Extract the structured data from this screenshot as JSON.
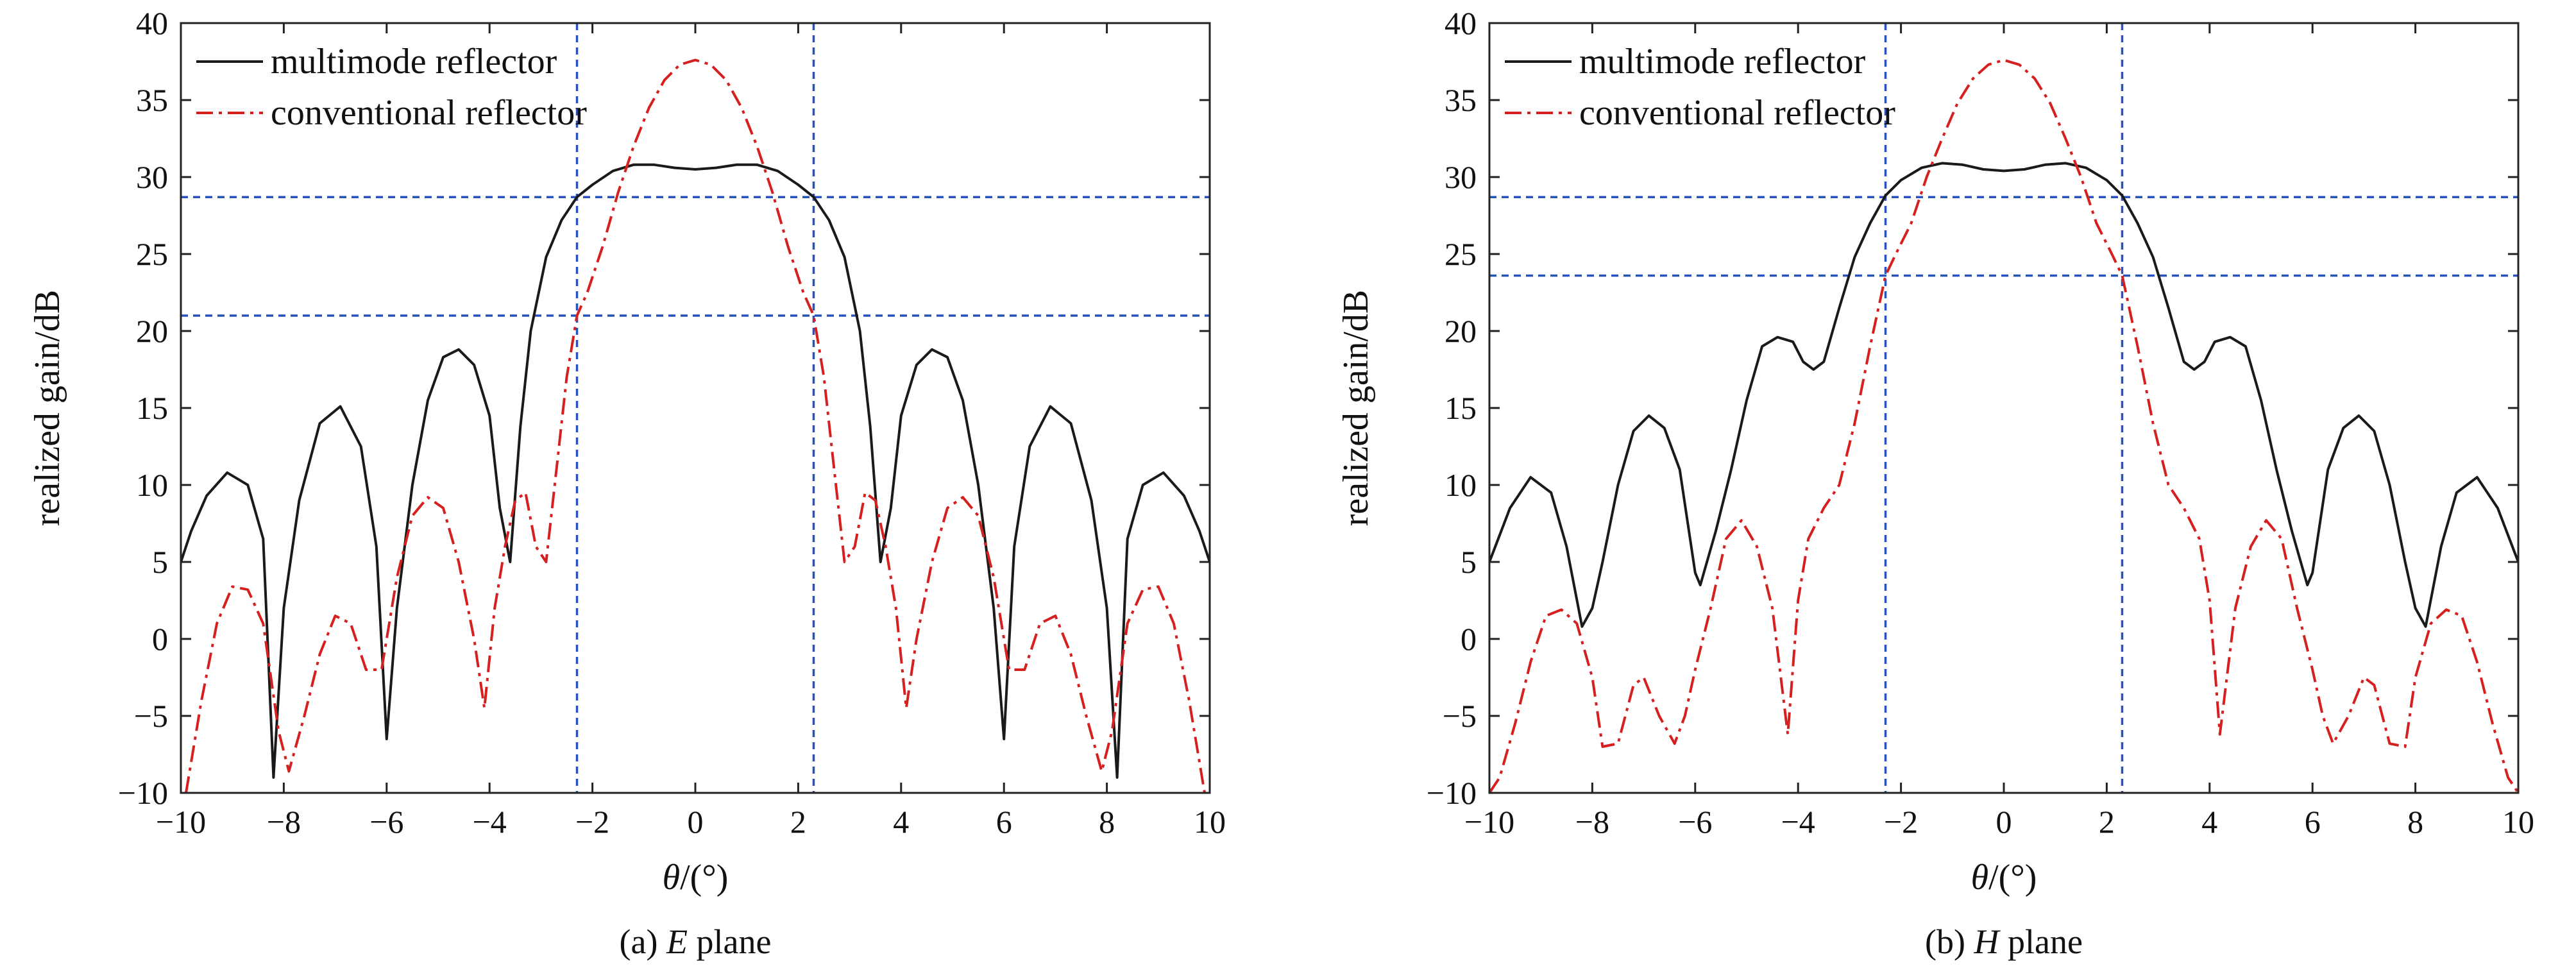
{
  "chart_data": [
    {
      "type": "line",
      "caption_prefix": "(a) ",
      "caption_italic": "E",
      "caption_suffix": " plane",
      "xlabel_italic": "θ",
      "xlabel_rest": "/(°)",
      "ylabel": "realized gain/dB",
      "xlim": [
        -10,
        10
      ],
      "ylim": [
        -10,
        40
      ],
      "xticks": [
        -10,
        -8,
        -6,
        -4,
        -2,
        0,
        2,
        4,
        6,
        8,
        10
      ],
      "yticks": [
        -10,
        -5,
        0,
        5,
        10,
        15,
        20,
        25,
        30,
        35,
        40
      ],
      "legend_position": "top-left",
      "ref_lines": {
        "vertical": [
          -2.3,
          2.3
        ],
        "horizontal": [
          28.7,
          21.0
        ],
        "color": "#2a52be"
      },
      "series": [
        {
          "name": "multimode reflector",
          "color": "#1a1a1a",
          "dash": "solid",
          "x": [
            0,
            0.4,
            0.8,
            1.2,
            1.6,
            2.0,
            2.3,
            2.6,
            2.9,
            3.2,
            3.4,
            3.6,
            3.8,
            4.0,
            4.3,
            4.6,
            4.9,
            5.2,
            5.5,
            5.8,
            6.0,
            6.2,
            6.5,
            6.9,
            7.3,
            7.7,
            8.0,
            8.2,
            8.4,
            8.7,
            9.1,
            9.5,
            9.8,
            10.0
          ],
          "y": [
            30.5,
            30.6,
            30.8,
            30.8,
            30.4,
            29.5,
            28.7,
            27.2,
            24.8,
            20.0,
            13.8,
            5.0,
            8.5,
            14.5,
            17.8,
            18.8,
            18.3,
            15.5,
            10.0,
            2.0,
            -6.5,
            6.0,
            12.5,
            15.1,
            14.0,
            9.0,
            2.0,
            -9.0,
            6.5,
            10.0,
            10.8,
            9.3,
            7.0,
            5.0
          ]
        },
        {
          "name": "conventional reflector",
          "color": "#d62020",
          "dash": "dashdot",
          "x": [
            0,
            0.3,
            0.6,
            0.9,
            1.2,
            1.5,
            1.8,
            2.1,
            2.3,
            2.5,
            2.7,
            2.9,
            3.1,
            3.3,
            3.5,
            3.7,
            3.9,
            4.1,
            4.3,
            4.6,
            4.9,
            5.2,
            5.5,
            5.8,
            6.1,
            6.4,
            6.7,
            7.0,
            7.3,
            7.6,
            7.9,
            8.1,
            8.4,
            8.7,
            9.0,
            9.3,
            9.6,
            9.9
          ],
          "y": [
            37.6,
            37.3,
            36.3,
            34.5,
            32.0,
            29.0,
            25.5,
            22.5,
            21.0,
            17.0,
            11.0,
            5.0,
            6.0,
            9.5,
            9.0,
            6.0,
            2.0,
            -4.5,
            0.0,
            5.0,
            8.5,
            9.2,
            8.0,
            4.0,
            -2.0,
            -2.0,
            1.0,
            1.5,
            -1.0,
            -5.0,
            -8.6,
            -6.0,
            1.0,
            3.2,
            3.4,
            1.0,
            -4.0,
            -10.0
          ]
        }
      ]
    },
    {
      "type": "line",
      "caption_prefix": "(b) ",
      "caption_italic": "H",
      "caption_suffix": " plane",
      "xlabel_italic": "θ",
      "xlabel_rest": "/(°)",
      "ylabel": "realized gain/dB",
      "xlim": [
        -10,
        10
      ],
      "ylim": [
        -10,
        40
      ],
      "xticks": [
        -10,
        -8,
        -6,
        -4,
        -2,
        0,
        2,
        4,
        6,
        8,
        10
      ],
      "yticks": [
        -10,
        -5,
        0,
        5,
        10,
        15,
        20,
        25,
        30,
        35,
        40
      ],
      "legend_position": "top-left",
      "ref_lines": {
        "vertical": [
          -2.3,
          2.3
        ],
        "horizontal": [
          28.7,
          23.6
        ],
        "color": "#2a52be"
      },
      "series": [
        {
          "name": "multimode reflector",
          "color": "#1a1a1a",
          "dash": "solid",
          "x": [
            0,
            0.4,
            0.8,
            1.2,
            1.6,
            2.0,
            2.3,
            2.6,
            2.9,
            3.2,
            3.5,
            3.7,
            3.9,
            4.1,
            4.4,
            4.7,
            5.0,
            5.3,
            5.6,
            5.9,
            6.0,
            6.3,
            6.6,
            6.9,
            7.2,
            7.5,
            7.8,
            8.0,
            8.2,
            8.5,
            8.8,
            9.2,
            9.6,
            10.0
          ],
          "y": [
            30.4,
            30.5,
            30.8,
            30.9,
            30.6,
            29.8,
            28.8,
            27.0,
            24.8,
            21.5,
            18.0,
            17.5,
            18.0,
            19.3,
            19.6,
            19.0,
            15.5,
            11.0,
            7.0,
            3.5,
            4.3,
            11.0,
            13.7,
            14.5,
            13.5,
            10.0,
            5.0,
            2.0,
            0.8,
            6.0,
            9.5,
            10.5,
            8.5,
            5.0
          ]
        },
        {
          "name": "conventional reflector",
          "color": "#d62020",
          "dash": "dashdot",
          "x": [
            0,
            0.3,
            0.6,
            0.9,
            1.2,
            1.5,
            1.8,
            2.1,
            2.3,
            2.6,
            2.9,
            3.2,
            3.5,
            3.8,
            4.0,
            4.2,
            4.5,
            4.8,
            5.1,
            5.4,
            5.7,
            6.0,
            6.2,
            6.4,
            6.7,
            7.0,
            7.2,
            7.5,
            7.8,
            8.0,
            8.3,
            8.6,
            8.9,
            9.2,
            9.5,
            9.8,
            10.0
          ],
          "y": [
            37.6,
            37.3,
            36.4,
            34.8,
            32.5,
            30.0,
            27.0,
            25.0,
            23.6,
            19.0,
            14.0,
            10.0,
            8.5,
            6.5,
            2.5,
            -6.2,
            2.0,
            6.0,
            7.7,
            6.5,
            2.0,
            -2.0,
            -5.0,
            -6.8,
            -5.0,
            -2.5,
            -3.0,
            -6.8,
            -7.0,
            -2.5,
            1.0,
            1.9,
            1.5,
            -1.5,
            -5.5,
            -9.0,
            -10.0
          ]
        }
      ]
    }
  ]
}
